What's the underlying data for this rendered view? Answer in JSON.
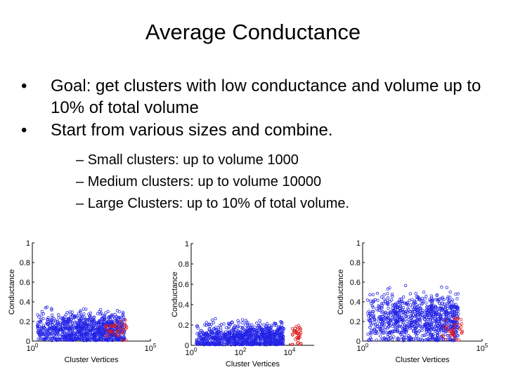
{
  "slide": {
    "title": "Average Conductance",
    "bullets": [
      "Goal: get clusters with low conductance and volume up to 10% of total volume",
      "Start from various sizes and combine."
    ],
    "sub_bullets": [
      "Small clusters: up to volume 1000",
      "Medium clusters: up to volume 10000",
      "Large Clusters: up to 10% of total volume."
    ],
    "bullet_glyph": "•",
    "dash_glyph": "–"
  },
  "chart_data": [
    {
      "type": "scatter",
      "xlabel": "Cluster Vertices",
      "ylabel": "Conductance",
      "x_scale": "log",
      "xlim": [
        1,
        100000
      ],
      "ylim": [
        0,
        1
      ],
      "y_ticks": [
        "0",
        "0.2",
        "0.4",
        "0.6",
        "0.8",
        "1"
      ],
      "x_ticks": [
        {
          "base": "10",
          "exp": "0"
        },
        {
          "base": "10",
          "exp": "5"
        }
      ],
      "colors": {
        "main": "#2323e6",
        "highlight": "#e01b1b"
      },
      "series": [
        {
          "color_key": "main",
          "x_range": [
            1.6,
            8000
          ],
          "y_center": 0.12,
          "y_spread": 0.13,
          "y_max": 0.48
        },
        {
          "color_key": "highlight",
          "x_range": [
            1000,
            10000
          ],
          "y_center": 0.12,
          "y_spread": 0.08,
          "y_max": 0.22
        }
      ]
    },
    {
      "type": "scatter",
      "xlabel": "Cluster Vertices",
      "ylabel": "Conductance",
      "x_scale": "log",
      "xlim": [
        1,
        100000
      ],
      "ylim": [
        0,
        1
      ],
      "y_ticks": [
        "0",
        "0.2",
        "0.4",
        "0.6",
        "0.8",
        "1"
      ],
      "x_ticks": [
        {
          "base": "10",
          "exp": "0"
        },
        {
          "base": "10",
          "exp": "2"
        },
        {
          "base": "10",
          "exp": "4"
        }
      ],
      "colors": {
        "main": "#2323e6",
        "highlight": "#e01b1b"
      },
      "series": [
        {
          "color_key": "main",
          "x_range": [
            1.6,
            6000
          ],
          "y_center": 0.08,
          "y_spread": 0.1,
          "y_max": 0.3
        },
        {
          "color_key": "highlight",
          "x_range": [
            12000,
            30000
          ],
          "y_center": 0.1,
          "y_spread": 0.08,
          "y_max": 0.2
        }
      ]
    },
    {
      "type": "scatter",
      "xlabel": "Cluster Vertices",
      "ylabel": "Conductance",
      "x_scale": "log",
      "xlim": [
        1,
        100000
      ],
      "ylim": [
        0,
        1
      ],
      "y_ticks": [
        "0",
        "0.2",
        "0.4",
        "0.6",
        "0.8",
        "1"
      ],
      "x_ticks": [
        {
          "base": "10",
          "exp": "0"
        },
        {
          "base": "10",
          "exp": "5"
        }
      ],
      "colors": {
        "main": "#2323e6",
        "highlight": "#e01b1b"
      },
      "series": [
        {
          "color_key": "main",
          "x_range": [
            1.6,
            10000
          ],
          "y_center": 0.22,
          "y_spread": 0.2,
          "y_max": 0.7
        },
        {
          "color_key": "highlight",
          "x_range": [
            2000,
            15000
          ],
          "y_center": 0.12,
          "y_spread": 0.1,
          "y_max": 0.25
        }
      ]
    }
  ]
}
